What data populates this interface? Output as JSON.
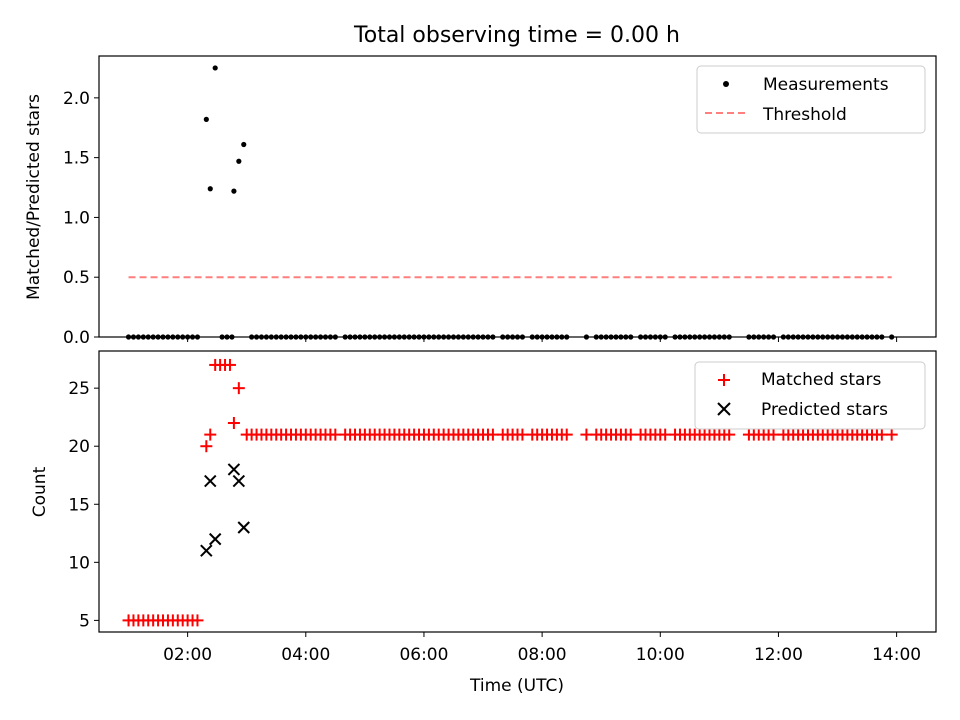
{
  "figure_title": "Total observing time = 0.00 h",
  "colors": {
    "measurement": "#000000",
    "threshold": "#ff7f7f",
    "matched": "#ff0000",
    "predicted": "#000000",
    "axes": "#000000"
  },
  "chart_data": [
    {
      "type": "scatter",
      "title": "Total observing time = 0.00 h",
      "xlabel": "",
      "ylabel": "Matched/Predicted stars",
      "xlim": [
        "00:30",
        "14:40"
      ],
      "ylim": [
        0,
        2.35
      ],
      "yticks": [
        "0.0",
        "0.5",
        "1.0",
        "1.5",
        "2.0"
      ],
      "grid": false,
      "legend_position": "top-right",
      "legend": [
        {
          "label": "Measurements",
          "marker": "dot"
        },
        {
          "label": "Threshold",
          "marker": "dashed-line"
        }
      ],
      "series": [
        {
          "name": "Measurements",
          "points": [
            [
              "02:19",
              1.82
            ],
            [
              "02:23",
              1.24
            ],
            [
              "02:28",
              2.25
            ],
            [
              "02:47",
              1.22
            ],
            [
              "02:52",
              1.47
            ],
            [
              "02:57",
              1.61
            ]
          ],
          "zero_times_note": "",
          "zero_times": [
            "01:00",
            "01:05",
            "01:10",
            "01:15",
            "01:20",
            "01:25",
            "01:30",
            "01:35",
            "01:40",
            "01:45",
            "01:50",
            "01:55",
            "02:00",
            "02:05",
            "02:10",
            "02:35",
            "02:40",
            "02:45",
            "03:05",
            "03:10",
            "03:15",
            "03:20",
            "03:25",
            "03:30",
            "03:35",
            "03:40",
            "03:45",
            "03:50",
            "03:55",
            "04:00",
            "04:05",
            "04:10",
            "04:15",
            "04:20",
            "04:25",
            "04:30",
            "04:40",
            "04:45",
            "04:50",
            "04:55",
            "05:00",
            "05:05",
            "05:10",
            "05:15",
            "05:20",
            "05:25",
            "05:30",
            "05:35",
            "05:40",
            "05:45",
            "05:50",
            "05:55",
            "06:00",
            "06:05",
            "06:10",
            "06:15",
            "06:20",
            "06:25",
            "06:30",
            "06:35",
            "06:40",
            "06:45",
            "06:50",
            "06:55",
            "07:00",
            "07:05",
            "07:10",
            "07:20",
            "07:25",
            "07:30",
            "07:35",
            "07:40",
            "07:50",
            "07:55",
            "08:00",
            "08:05",
            "08:10",
            "08:15",
            "08:20",
            "08:25",
            "08:45",
            "08:55",
            "09:00",
            "09:05",
            "09:10",
            "09:15",
            "09:20",
            "09:25",
            "09:30",
            "09:40",
            "09:45",
            "09:50",
            "09:55",
            "10:00",
            "10:05",
            "10:15",
            "10:20",
            "10:25",
            "10:30",
            "10:35",
            "10:40",
            "10:45",
            "10:50",
            "10:55",
            "11:00",
            "11:05",
            "11:10",
            "11:30",
            "11:35",
            "11:40",
            "11:45",
            "11:50",
            "11:55",
            "12:05",
            "12:10",
            "12:15",
            "12:20",
            "12:25",
            "12:30",
            "12:35",
            "12:40",
            "12:45",
            "12:50",
            "12:55",
            "13:00",
            "13:05",
            "13:10",
            "13:15",
            "13:20",
            "13:25",
            "13:30",
            "13:35",
            "13:40",
            "13:45",
            "13:55"
          ]
        },
        {
          "name": "Threshold",
          "line": true,
          "x": [
            "01:00",
            "13:55"
          ],
          "y": [
            0.5,
            0.5
          ]
        }
      ]
    },
    {
      "type": "scatter",
      "title": "",
      "xlabel": "Time (UTC)",
      "ylabel": "Count",
      "xlim": [
        "00:30",
        "14:40"
      ],
      "ylim": [
        4,
        28.2
      ],
      "xticks": [
        "02:00",
        "04:00",
        "06:00",
        "08:00",
        "10:00",
        "12:00",
        "14:00"
      ],
      "yticks": [
        "5",
        "10",
        "15",
        "20",
        "25"
      ],
      "grid": false,
      "legend_position": "top-right",
      "legend": [
        {
          "label": "Matched stars",
          "marker": "plus"
        },
        {
          "label": "Predicted stars",
          "marker": "x"
        }
      ],
      "series": [
        {
          "name": "Matched stars",
          "points": [
            [
              "01:00",
              5
            ],
            [
              "01:05",
              5
            ],
            [
              "01:10",
              5
            ],
            [
              "01:15",
              5
            ],
            [
              "01:20",
              5
            ],
            [
              "01:25",
              5
            ],
            [
              "01:30",
              5
            ],
            [
              "01:35",
              5
            ],
            [
              "01:40",
              5
            ],
            [
              "01:45",
              5
            ],
            [
              "01:50",
              5
            ],
            [
              "01:55",
              5
            ],
            [
              "02:00",
              5
            ],
            [
              "02:05",
              5
            ],
            [
              "02:10",
              5
            ],
            [
              "02:19",
              20
            ],
            [
              "02:23",
              21
            ],
            [
              "02:28",
              27
            ],
            [
              "02:33",
              27
            ],
            [
              "02:38",
              27
            ],
            [
              "02:43",
              27
            ],
            [
              "02:47",
              22
            ],
            [
              "02:52",
              25
            ]
          ],
          "level_21_times": [
            "03:00",
            "03:05",
            "03:10",
            "03:15",
            "03:20",
            "03:25",
            "03:30",
            "03:35",
            "03:40",
            "03:45",
            "03:50",
            "03:55",
            "04:00",
            "04:05",
            "04:10",
            "04:15",
            "04:20",
            "04:25",
            "04:30",
            "04:40",
            "04:45",
            "04:50",
            "04:55",
            "05:00",
            "05:05",
            "05:10",
            "05:15",
            "05:20",
            "05:25",
            "05:30",
            "05:35",
            "05:40",
            "05:45",
            "05:50",
            "05:55",
            "06:00",
            "06:05",
            "06:10",
            "06:15",
            "06:20",
            "06:25",
            "06:30",
            "06:35",
            "06:40",
            "06:45",
            "06:50",
            "06:55",
            "07:00",
            "07:05",
            "07:10",
            "07:20",
            "07:25",
            "07:30",
            "07:35",
            "07:40",
            "07:50",
            "07:55",
            "08:00",
            "08:05",
            "08:10",
            "08:15",
            "08:20",
            "08:25",
            "08:45",
            "08:55",
            "09:00",
            "09:05",
            "09:10",
            "09:15",
            "09:20",
            "09:25",
            "09:30",
            "09:40",
            "09:45",
            "09:50",
            "09:55",
            "10:00",
            "10:05",
            "10:15",
            "10:20",
            "10:25",
            "10:30",
            "10:35",
            "10:40",
            "10:45",
            "10:50",
            "10:55",
            "11:00",
            "11:05",
            "11:10",
            "11:30",
            "11:35",
            "11:40",
            "11:45",
            "11:50",
            "11:55",
            "12:05",
            "12:10",
            "12:15",
            "12:20",
            "12:25",
            "12:30",
            "12:35",
            "12:40",
            "12:45",
            "12:50",
            "12:55",
            "13:00",
            "13:05",
            "13:10",
            "13:15",
            "13:20",
            "13:25",
            "13:30",
            "13:35",
            "13:40",
            "13:45",
            "13:55"
          ]
        },
        {
          "name": "Predicted stars",
          "points": [
            [
              "02:19",
              11
            ],
            [
              "02:23",
              17
            ],
            [
              "02:28",
              12
            ],
            [
              "02:47",
              18
            ],
            [
              "02:52",
              17
            ],
            [
              "02:57",
              13
            ]
          ]
        }
      ]
    }
  ]
}
